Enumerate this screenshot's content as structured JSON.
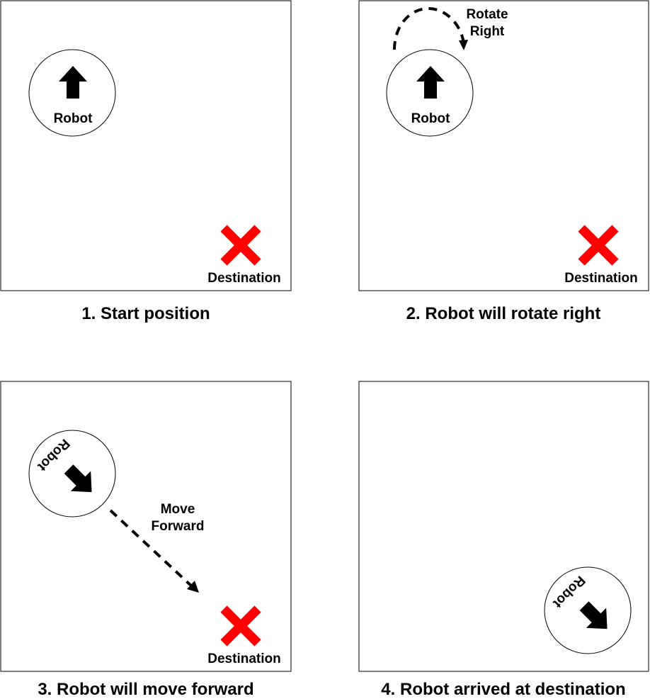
{
  "panels": [
    {
      "caption": "1. Start position",
      "robot_label": "Robot",
      "destination_label": "Destination"
    },
    {
      "caption": "2. Robot will rotate right",
      "robot_label": "Robot",
      "destination_label": "Destination",
      "action_line1": "Rotate",
      "action_line2": "Right"
    },
    {
      "caption": "3. Robot will move forward",
      "robot_label": "Robot",
      "destination_label": "Destination",
      "action_line1": "Move",
      "action_line2": "Forward"
    },
    {
      "caption": "4. Robot arrived at destination",
      "robot_label": "Robot"
    }
  ],
  "colors": {
    "destination_marker": "#ff0000",
    "outline": "#000000"
  }
}
